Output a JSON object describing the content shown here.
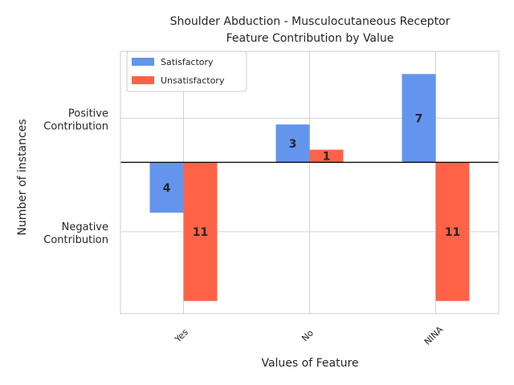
{
  "chart_data": {
    "type": "bar",
    "title": "Shoulder Abduction - Musculocutaneous Receptor",
    "subtitle": "Feature Contribution by Value",
    "xlabel": "Values of Feature",
    "ylabel": "Number of instances",
    "categories": [
      "Yes",
      "No",
      "NINA"
    ],
    "ytick_labels": [
      {
        "value": 3.5,
        "lines": [
          "Positive",
          "Contribution"
        ]
      },
      {
        "value": -5.5,
        "lines": [
          "Negative",
          "Contribution"
        ]
      }
    ],
    "ylim": [
      -12,
      8.8
    ],
    "grid": true,
    "legend_position": "top-left",
    "series": [
      {
        "name": "Satisfactory",
        "color": "#6495ED",
        "values": [
          -4,
          3,
          7
        ],
        "labels": [
          "4",
          "3",
          "7"
        ]
      },
      {
        "name": "Unsatisfactory",
        "color": "#FF6347",
        "values": [
          -11,
          1,
          -11
        ],
        "labels": [
          "11",
          "1",
          "11"
        ]
      }
    ]
  }
}
